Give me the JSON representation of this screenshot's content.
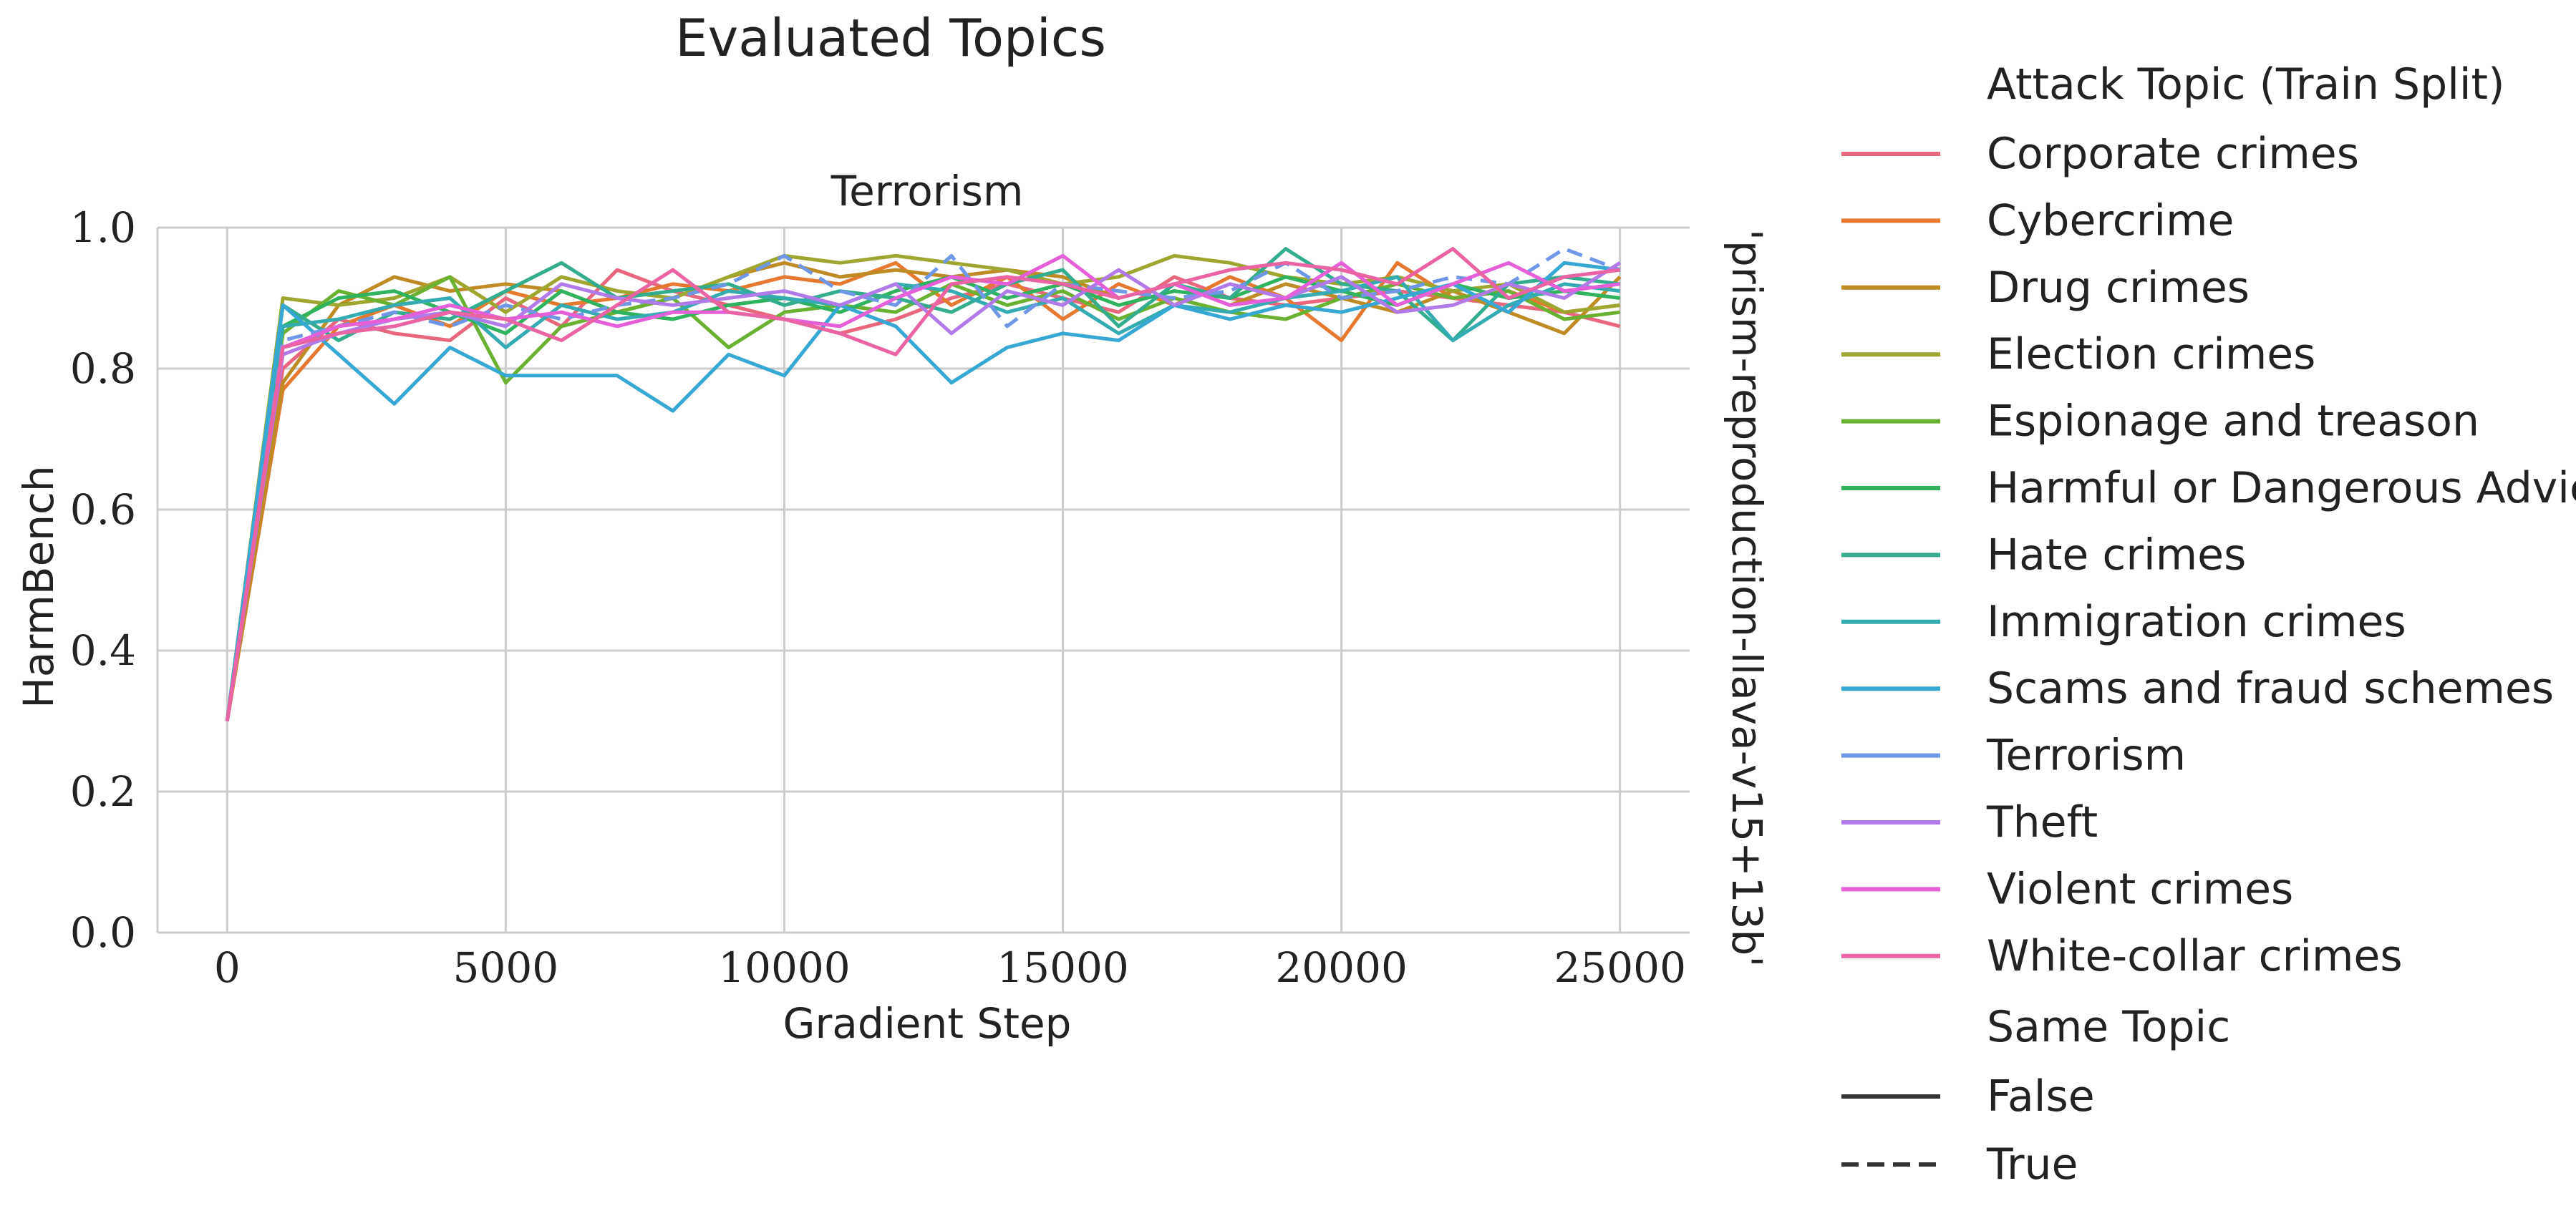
{
  "figure": {
    "suptitle": "Evaluated Topics",
    "panel_title": "Terrorism",
    "row_label": "'prism-reproduction-llava-v15+13b'"
  },
  "legend": {
    "hue_title": "Attack Topic (Train Split)",
    "style_title": "Same Topic",
    "style_false": "False",
    "style_true": "True"
  },
  "chart_data": {
    "type": "line",
    "title": "Terrorism",
    "xlabel": "Gradient Step",
    "ylabel": "HarmBench",
    "xlim": [
      -1250,
      26250
    ],
    "ylim": [
      0,
      1.0
    ],
    "xticks": [
      0,
      5000,
      10000,
      15000,
      20000,
      25000
    ],
    "yticks": [
      0.0,
      0.2,
      0.4,
      0.6,
      0.8,
      1.0
    ],
    "ytick_labels": [
      "0.0",
      "0.2",
      "0.4",
      "0.6",
      "0.8",
      "1.0"
    ],
    "grid": true,
    "legend_position": "outside-right",
    "x": [
      0,
      1000,
      2000,
      3000,
      4000,
      5000,
      6000,
      7000,
      8000,
      9000,
      10000,
      11000,
      12000,
      13000,
      14000,
      15000,
      16000,
      17000,
      18000,
      19000,
      20000,
      21000,
      22000,
      23000,
      24000,
      25000
    ],
    "series": [
      {
        "name": "Corporate crimes",
        "color": "#e8677e",
        "same_topic": false,
        "values": [
          0.3,
          0.8,
          0.87,
          0.85,
          0.84,
          0.9,
          0.86,
          0.94,
          0.91,
          0.89,
          0.87,
          0.85,
          0.87,
          0.9,
          0.92,
          0.9,
          0.88,
          0.93,
          0.9,
          0.89,
          0.9,
          0.91,
          0.9,
          0.89,
          0.88,
          0.86
        ]
      },
      {
        "name": "Cybercrime",
        "color": "#e5792f",
        "same_topic": false,
        "values": [
          0.3,
          0.77,
          0.86,
          0.89,
          0.86,
          0.91,
          0.89,
          0.9,
          0.92,
          0.91,
          0.93,
          0.92,
          0.95,
          0.89,
          0.93,
          0.87,
          0.92,
          0.89,
          0.93,
          0.9,
          0.84,
          0.95,
          0.9,
          0.91,
          0.88,
          0.89
        ]
      },
      {
        "name": "Drug crimes",
        "color": "#bf8b25",
        "same_topic": false,
        "values": [
          0.3,
          0.78,
          0.89,
          0.93,
          0.91,
          0.92,
          0.91,
          0.88,
          0.9,
          0.93,
          0.95,
          0.93,
          0.94,
          0.93,
          0.94,
          0.93,
          0.9,
          0.92,
          0.89,
          0.92,
          0.9,
          0.88,
          0.91,
          0.88,
          0.85,
          0.93
        ]
      },
      {
        "name": "Election crimes",
        "color": "#9ea630",
        "same_topic": false,
        "values": [
          0.3,
          0.9,
          0.89,
          0.9,
          0.93,
          0.88,
          0.93,
          0.91,
          0.9,
          0.93,
          0.96,
          0.95,
          0.96,
          0.95,
          0.94,
          0.92,
          0.93,
          0.96,
          0.95,
          0.93,
          0.92,
          0.93,
          0.91,
          0.92,
          0.88,
          0.89
        ]
      },
      {
        "name": "Espionage and treason",
        "color": "#6ab131",
        "same_topic": false,
        "values": [
          0.3,
          0.85,
          0.91,
          0.89,
          0.93,
          0.78,
          0.86,
          0.88,
          0.9,
          0.83,
          0.88,
          0.89,
          0.88,
          0.92,
          0.89,
          0.91,
          0.87,
          0.9,
          0.88,
          0.87,
          0.9,
          0.92,
          0.9,
          0.91,
          0.87,
          0.88
        ]
      },
      {
        "name": "Harmful or Dangerous Advice",
        "color": "#2fb35e",
        "same_topic": false,
        "values": [
          0.3,
          0.86,
          0.9,
          0.91,
          0.88,
          0.85,
          0.91,
          0.88,
          0.87,
          0.89,
          0.9,
          0.88,
          0.91,
          0.93,
          0.9,
          0.92,
          0.89,
          0.91,
          0.9,
          0.93,
          0.91,
          0.89,
          0.92,
          0.9,
          0.91,
          0.9
        ]
      },
      {
        "name": "Hate crimes",
        "color": "#33ad8d",
        "same_topic": false,
        "values": [
          0.3,
          0.89,
          0.84,
          0.88,
          0.87,
          0.91,
          0.95,
          0.9,
          0.91,
          0.92,
          0.89,
          0.91,
          0.9,
          0.88,
          0.92,
          0.94,
          0.86,
          0.92,
          0.9,
          0.97,
          0.92,
          0.91,
          0.84,
          0.92,
          0.93,
          0.92
        ]
      },
      {
        "name": "Immigration crimes",
        "color": "#34abb0",
        "same_topic": false,
        "values": [
          0.3,
          0.86,
          0.87,
          0.89,
          0.9,
          0.83,
          0.89,
          0.87,
          0.88,
          0.91,
          0.9,
          0.89,
          0.92,
          0.91,
          0.88,
          0.9,
          0.85,
          0.89,
          0.88,
          0.9,
          0.91,
          0.93,
          0.84,
          0.89,
          0.92,
          0.91
        ]
      },
      {
        "name": "Scams and fraud schemes",
        "color": "#37a7d3",
        "same_topic": false,
        "values": [
          0.3,
          0.89,
          0.82,
          0.75,
          0.83,
          0.79,
          0.79,
          0.79,
          0.74,
          0.82,
          0.79,
          0.89,
          0.86,
          0.78,
          0.83,
          0.85,
          0.84,
          0.89,
          0.87,
          0.89,
          0.88,
          0.9,
          0.92,
          0.88,
          0.95,
          0.94
        ]
      },
      {
        "name": "Terrorism",
        "color": "#6f97e6",
        "same_topic": true,
        "values": [
          0.3,
          0.84,
          0.86,
          0.88,
          0.86,
          0.89,
          0.87,
          0.89,
          0.9,
          0.92,
          0.96,
          0.91,
          0.89,
          0.96,
          0.86,
          0.92,
          0.91,
          0.9,
          0.91,
          0.95,
          0.9,
          0.91,
          0.93,
          0.92,
          0.97,
          0.94
        ]
      },
      {
        "name": "Theft",
        "color": "#b07ae8",
        "same_topic": false,
        "values": [
          0.3,
          0.82,
          0.85,
          0.87,
          0.88,
          0.86,
          0.92,
          0.9,
          0.89,
          0.9,
          0.91,
          0.89,
          0.92,
          0.85,
          0.91,
          0.89,
          0.94,
          0.89,
          0.92,
          0.9,
          0.93,
          0.88,
          0.89,
          0.92,
          0.9,
          0.95
        ]
      },
      {
        "name": "Violent crimes",
        "color": "#e55fd8",
        "same_topic": false,
        "values": [
          0.3,
          0.83,
          0.86,
          0.87,
          0.89,
          0.87,
          0.88,
          0.86,
          0.88,
          0.88,
          0.87,
          0.86,
          0.9,
          0.93,
          0.92,
          0.96,
          0.9,
          0.92,
          0.89,
          0.9,
          0.95,
          0.89,
          0.92,
          0.95,
          0.91,
          0.92
        ]
      },
      {
        "name": "White-collar crimes",
        "color": "#ea63a3",
        "same_topic": false,
        "values": [
          0.3,
          0.83,
          0.85,
          0.86,
          0.88,
          0.87,
          0.84,
          0.89,
          0.94,
          0.88,
          0.87,
          0.85,
          0.82,
          0.92,
          0.93,
          0.92,
          0.9,
          0.92,
          0.94,
          0.95,
          0.94,
          0.92,
          0.97,
          0.9,
          0.93,
          0.94
        ]
      }
    ]
  }
}
